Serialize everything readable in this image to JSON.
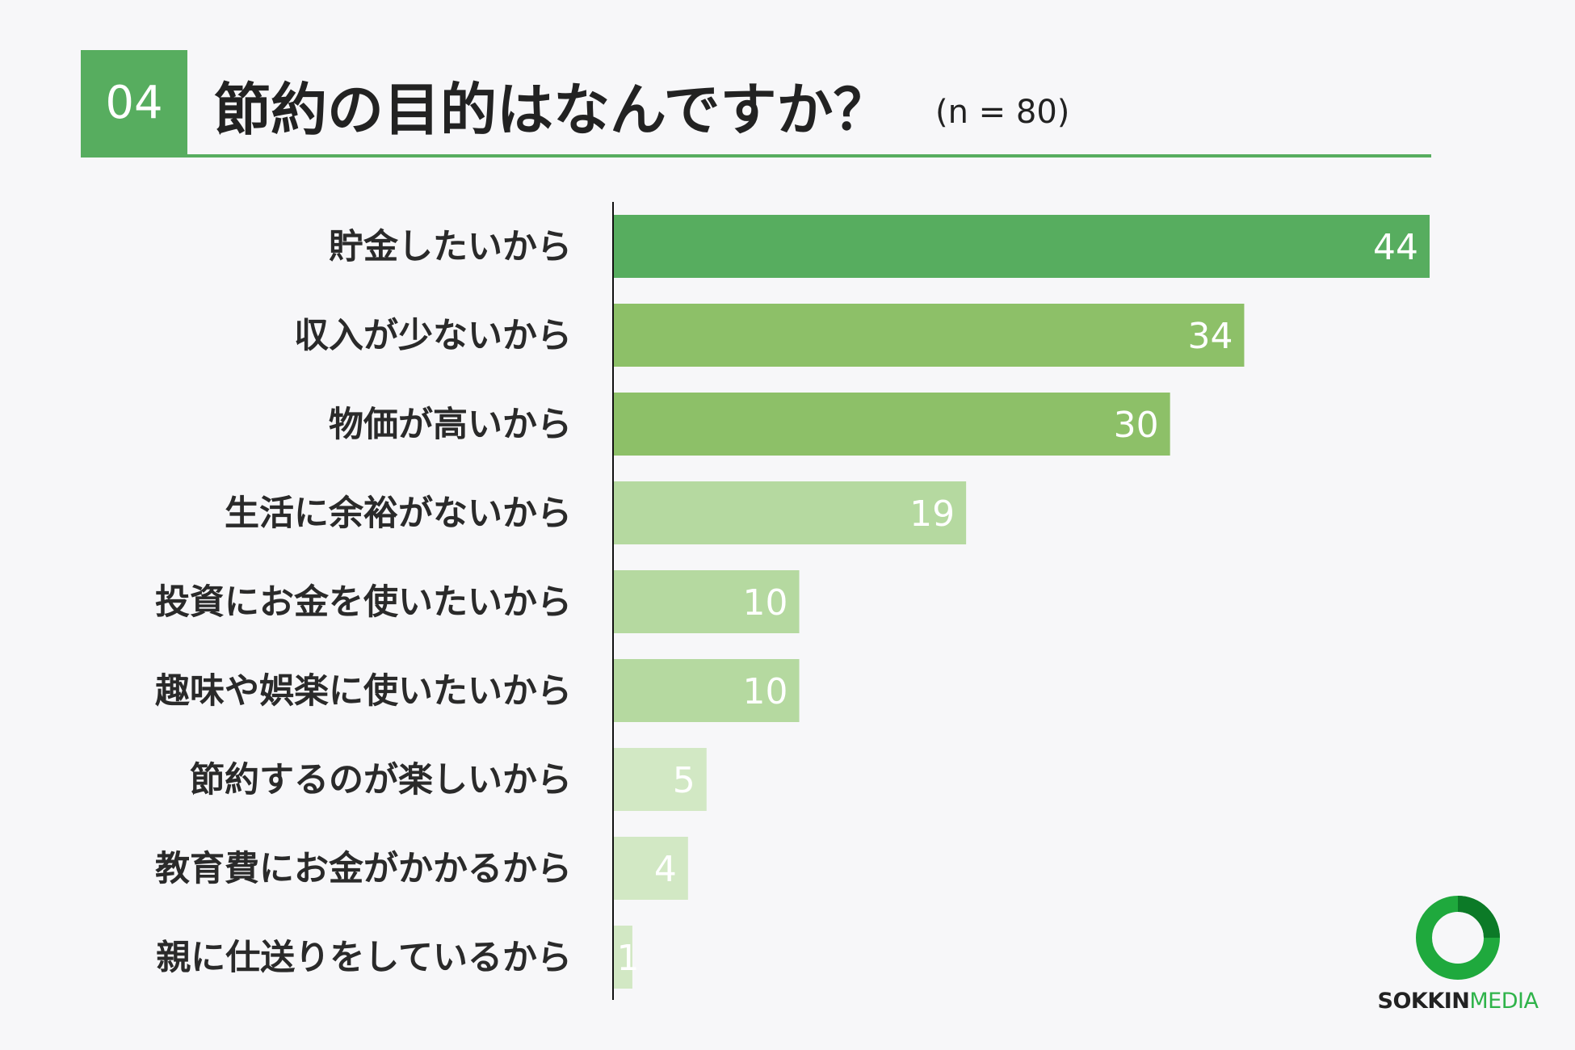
{
  "header": {
    "number": "04",
    "title": "節約の目的はなんですか？",
    "sample": "(n = 80)"
  },
  "chart_data": {
    "type": "bar",
    "orientation": "horizontal",
    "categories": [
      "貯金したいから",
      "収入が少ないから",
      "物価が高いから",
      "生活に余裕がないから",
      "投資にお金を使いたいから",
      "趣味や娯楽に使いたいから",
      "節約するのが楽しいから",
      "教育費にお金がかかるから",
      "親に仕送りをしているから"
    ],
    "values": [
      44,
      34,
      30,
      19,
      10,
      10,
      5,
      4,
      1
    ],
    "colors": [
      "#57ad5f",
      "#8dc068",
      "#8dc068",
      "#b5d9a0",
      "#b5d9a0",
      "#b5d9a0",
      "#d2e8c4",
      "#d2e8c4",
      "#d2e8c4"
    ],
    "xlim": [
      0,
      44
    ]
  },
  "logo": {
    "name_bold": "SOKKIN",
    "name_light": "MEDIA",
    "ring_colors": [
      "#1fa93d",
      "#0c7a27"
    ]
  }
}
